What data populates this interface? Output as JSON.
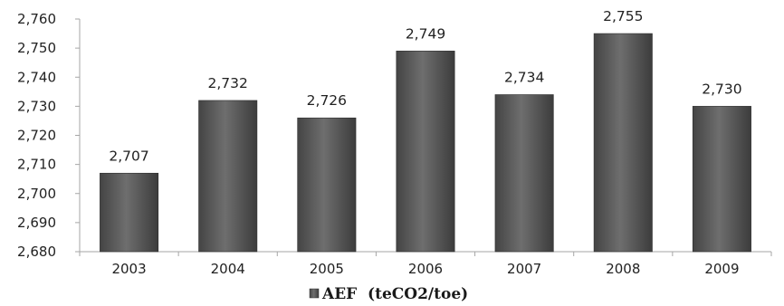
{
  "chart_data": {
    "type": "bar",
    "categories": [
      "2003",
      "2004",
      "2005",
      "2006",
      "2007",
      "2008",
      "2009"
    ],
    "series": [
      {
        "name": "AEF  (teCO2/toe)",
        "values": [
          2707,
          2732,
          2726,
          2749,
          2734,
          2755,
          2730
        ]
      }
    ],
    "data_labels": [
      "2,707",
      "2,732",
      "2,726",
      "2,749",
      "2,734",
      "2,755",
      "2,730"
    ],
    "y_ticks": [
      "2,680",
      "2,690",
      "2,700",
      "2,710",
      "2,720",
      "2,730",
      "2,740",
      "2,750",
      "2,760"
    ],
    "ylim": [
      2680,
      2760
    ],
    "grid": false,
    "legend_position": "bottom",
    "colors": {
      "bar": "#5a5a5a",
      "bar_light": "#7c7c7c",
      "bar_dark": "#3e3e3e",
      "axis": "#a6a6a6"
    }
  }
}
